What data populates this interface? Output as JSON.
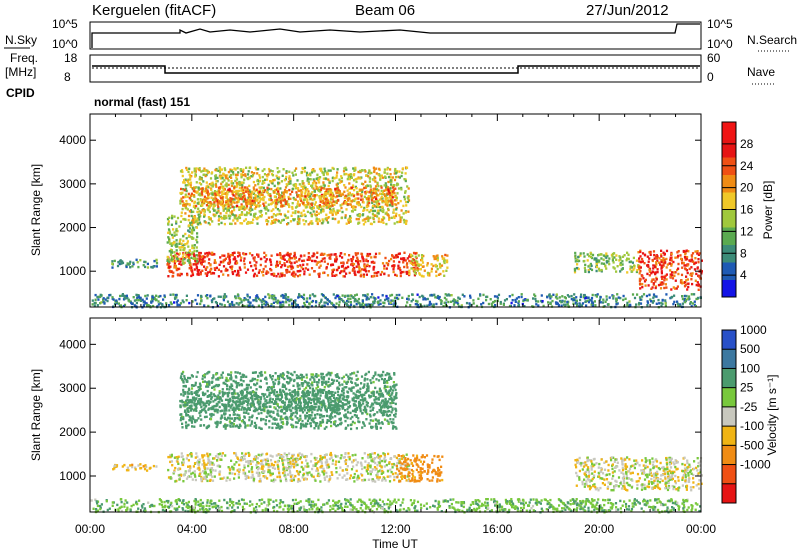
{
  "header": {
    "station": "Kerguelen (fitACF)",
    "beam": "Beam 06",
    "date": "27/Jun/2012"
  },
  "nsky": {
    "label": "N.Sky",
    "ticks": [
      "10^5",
      "10^0"
    ]
  },
  "nsearch": {
    "label": "N.Search",
    "ticks": [
      "10^5",
      "10^0"
    ]
  },
  "freq": {
    "label_line1": "Freq.",
    "label_line2": "[MHz]",
    "ticks": [
      "18",
      "8"
    ]
  },
  "nave": {
    "label": "Nave",
    "ticks": [
      "60",
      "0"
    ]
  },
  "cpid": {
    "label": "CPID",
    "value": "normal (fast) 151"
  },
  "x_axis": {
    "label": "Time UT",
    "ticks": [
      "00:00",
      "04:00",
      "08:00",
      "12:00",
      "16:00",
      "20:00",
      "00:00"
    ]
  },
  "power_panel": {
    "ylabel": "Slant Range [km]",
    "colorbar_label": "Power [dB]",
    "colorbar_ticks": [
      "28",
      "24",
      "20",
      "16",
      "12",
      "8",
      "4"
    ]
  },
  "velocity_panel": {
    "ylabel": "Slant Range [km]",
    "colorbar_label": "Velocity [m s⁻¹]",
    "colorbar_ticks": [
      "1000",
      "500",
      "100",
      "25",
      "-25",
      "-100",
      "-500",
      "-1000"
    ]
  },
  "colors": {
    "power_scale": [
      "#1414e6",
      "#1e5ab4",
      "#3c8c78",
      "#5aaa50",
      "#a0c83c",
      "#f0c828",
      "#f08c14",
      "#f05014",
      "#e61414",
      "#f01414"
    ],
    "velocity_scale": [
      "#2850c8",
      "#3c78a0",
      "#4b9b6e",
      "#78c83c",
      "#c8c8be",
      "#f0b414",
      "#f08c14",
      "#f05014",
      "#e61414"
    ]
  },
  "chart_data": [
    {
      "type": "heatmap",
      "title": "Power",
      "xlabel": "Time UT",
      "ylabel": "Slant Range [km]",
      "x_range_hours": [
        0,
        24
      ],
      "y_range_km": [
        180,
        4600
      ],
      "y_ticks": [
        1000,
        2000,
        3000,
        4000
      ],
      "colorbar": {
        "label": "Power [dB]",
        "range": [
          0,
          32
        ],
        "ticks": [
          4,
          8,
          12,
          16,
          20,
          24,
          28
        ]
      },
      "regions": [
        {
          "t0": 3.0,
          "t1": 12.8,
          "r0": 900,
          "r1": 1450,
          "power": 26
        },
        {
          "t0": 3.0,
          "t1": 4.2,
          "r0": 1200,
          "r1": 2300,
          "power": 14
        },
        {
          "t0": 3.5,
          "t1": 12.5,
          "r0": 2100,
          "r1": 3400,
          "power": 16
        },
        {
          "t0": 3.5,
          "t1": 12.0,
          "r0": 2500,
          "r1": 2950,
          "power": 21
        },
        {
          "t0": 0.8,
          "t1": 2.6,
          "r0": 1100,
          "r1": 1300,
          "power": 9
        },
        {
          "t0": 12.5,
          "t1": 14.0,
          "r0": 900,
          "r1": 1400,
          "power": 18
        },
        {
          "t0": 19.0,
          "t1": 21.5,
          "r0": 1000,
          "r1": 1450,
          "power": 13
        },
        {
          "t0": 21.5,
          "t1": 24.0,
          "r0": 600,
          "r1": 1500,
          "power": 25
        },
        {
          "t0": 0.0,
          "t1": 24.0,
          "r0": 200,
          "r1": 500,
          "power": 8
        }
      ]
    },
    {
      "type": "heatmap",
      "title": "Velocity",
      "xlabel": "Time UT",
      "ylabel": "Slant Range [km]",
      "x_range_hours": [
        0,
        24
      ],
      "y_range_km": [
        180,
        4600
      ],
      "y_ticks": [
        1000,
        2000,
        3000,
        4000
      ],
      "colorbar": {
        "label": "Velocity [m s⁻¹]",
        "ticks": [
          1000,
          500,
          100,
          25,
          -25,
          -100,
          -500,
          -1000
        ]
      },
      "regions": [
        {
          "t0": 3.0,
          "t1": 12.5,
          "r0": 900,
          "r1": 1550,
          "velocity": 0
        },
        {
          "t0": 12.0,
          "t1": 13.8,
          "r0": 900,
          "r1": 1500,
          "velocity": -150
        },
        {
          "t0": 3.5,
          "t1": 12.0,
          "r0": 2100,
          "r1": 3400,
          "velocity": 150
        },
        {
          "t0": 3.5,
          "t1": 12.0,
          "r0": 2500,
          "r1": 2950,
          "velocity": 300
        },
        {
          "t0": 0.8,
          "t1": 2.6,
          "r0": 1150,
          "r1": 1300,
          "velocity": -60
        },
        {
          "t0": 19.0,
          "t1": 24.0,
          "r0": 700,
          "r1": 1450,
          "velocity": 0
        },
        {
          "t0": 0.0,
          "t1": 24.0,
          "r0": 200,
          "r1": 500,
          "velocity": 80
        }
      ]
    }
  ]
}
